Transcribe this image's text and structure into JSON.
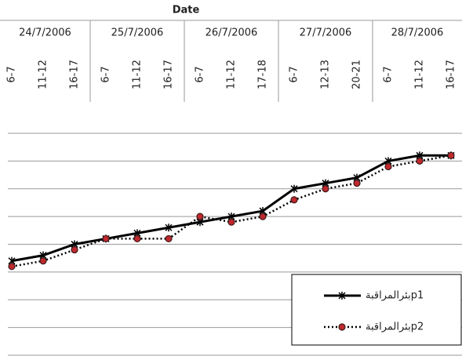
{
  "chart_data": {
    "type": "line",
    "title": "Date",
    "dates": [
      "24/7/2006",
      "25/7/2006",
      "26/7/2006",
      "27/7/2006",
      "28/7/2006"
    ],
    "categories": [
      "6-7",
      "11-12",
      "16-17",
      "6-7",
      "11-12",
      "16-17",
      "6-7",
      "11-12",
      "17-18",
      "6-7",
      "12-13",
      "20-21",
      "6-7",
      "11-12",
      "16-17"
    ],
    "series": [
      {
        "name": "بئرالمراقبةp1",
        "color": "#000000",
        "values": [
          3.4,
          3.6,
          4.0,
          4.2,
          4.4,
          4.6,
          4.8,
          5.0,
          5.2,
          6.0,
          6.2,
          6.4,
          7.0,
          7.2,
          7.2
        ]
      },
      {
        "name": "بئرالمراقبةp2",
        "color": "#c0282d",
        "values": [
          3.2,
          3.4,
          3.8,
          4.2,
          4.2,
          4.2,
          5.0,
          4.8,
          5.0,
          5.6,
          6.0,
          6.2,
          6.8,
          7.0,
          7.2
        ]
      }
    ],
    "ylim": [
      0,
      8
    ],
    "yticks": [
      0,
      1,
      2,
      3,
      4,
      5,
      6,
      7,
      8
    ],
    "grid": true,
    "legend": "lower right"
  }
}
